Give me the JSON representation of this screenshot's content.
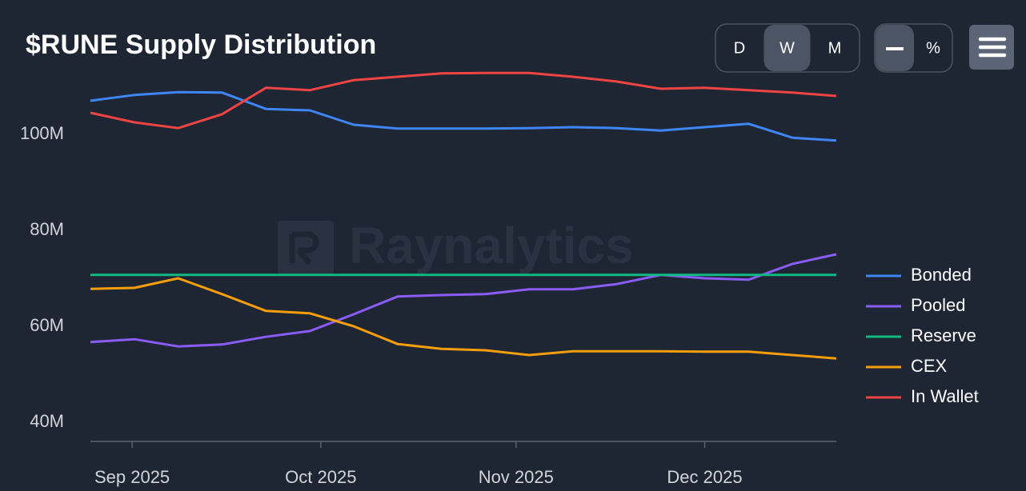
{
  "chart_data": {
    "type": "line",
    "title": "$RUNE Supply Distribution",
    "series": [
      {
        "name": "Bonded",
        "color": "#3f86f5",
        "values": [
          109.0,
          110.2,
          110.8,
          110.7,
          107.3,
          107.0,
          104.0,
          103.2,
          103.2,
          103.2,
          103.3,
          103.5,
          103.3,
          102.8,
          103.5,
          104.2,
          101.3,
          100.7
        ]
      },
      {
        "name": "Pooled",
        "color": "#8b5cf6",
        "values": [
          58.7,
          59.3,
          57.8,
          58.2,
          59.8,
          61.0,
          64.5,
          68.2,
          68.5,
          68.7,
          69.7,
          69.7,
          70.8,
          72.7,
          72.0,
          71.7,
          75.0,
          77.0
        ]
      },
      {
        "name": "Reserve",
        "color": "#10b981",
        "values": [
          72.7,
          72.7,
          72.7,
          72.7,
          72.7,
          72.7,
          72.7,
          72.7,
          72.7,
          72.7,
          72.7,
          72.7,
          72.7,
          72.7,
          72.7,
          72.7,
          72.7,
          72.7
        ]
      },
      {
        "name": "CEX",
        "color": "#f59e0b",
        "values": [
          69.8,
          70.0,
          72.0,
          68.7,
          65.2,
          64.7,
          62.0,
          58.3,
          57.3,
          57.0,
          56.0,
          56.8,
          56.8,
          56.8,
          56.7,
          56.7,
          56.0,
          55.3
        ]
      },
      {
        "name": "In Wallet",
        "color": "#ef4444",
        "values": [
          106.5,
          104.5,
          103.3,
          106.2,
          111.7,
          111.2,
          113.3,
          114.0,
          114.7,
          114.8,
          114.8,
          114.0,
          113.0,
          111.5,
          111.7,
          111.2,
          110.7,
          110.0
        ]
      }
    ],
    "ylim": [
      38,
      116
    ],
    "yticks": [
      {
        "value": 40,
        "label": "40M"
      },
      {
        "value": 60,
        "label": "60M"
      },
      {
        "value": 80,
        "label": "80M"
      },
      {
        "value": 100,
        "label": "100M"
      }
    ],
    "xlim": [
      0,
      17
    ],
    "xticks": [
      {
        "value": 0.95,
        "label": "Sep 2025"
      },
      {
        "value": 5.25,
        "label": "Oct 2025"
      },
      {
        "value": 9.7,
        "label": "Nov 2025"
      },
      {
        "value": 14,
        "label": "Dec 2025"
      }
    ],
    "grid": false,
    "legend": "right"
  },
  "controls": {
    "periods": [
      "D",
      "W",
      "M"
    ],
    "selected_period": "W",
    "percent_toggle": "%"
  },
  "watermark": "Raynalytics"
}
